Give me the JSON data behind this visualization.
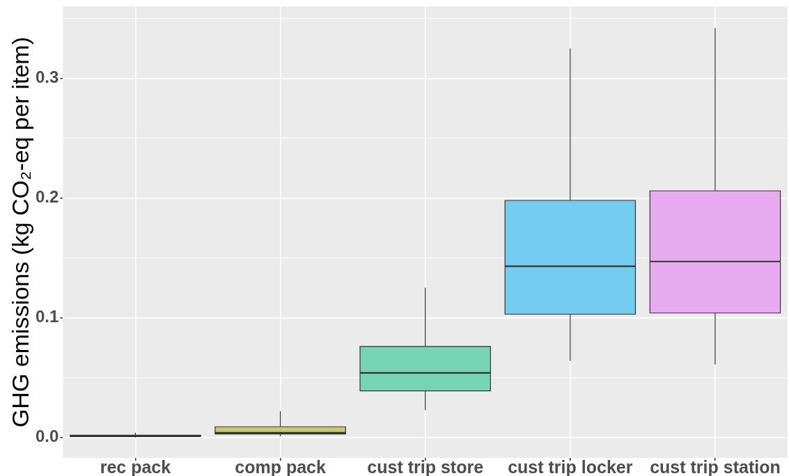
{
  "chart_data": {
    "type": "box",
    "categories": [
      "rec pack",
      "comp pack",
      "cust trip store",
      "cust trip locker",
      "cust trip station"
    ],
    "ylabel": "GHG emissions (kg CO₂-eq per item)",
    "colors": [
      "#333333",
      "#c8c875",
      "#75d5b4",
      "#74ccf0",
      "#e8aaf0"
    ],
    "boxes": [
      {
        "low": 0,
        "q1": 0.001,
        "median": 0.001,
        "q3": 0.002,
        "high": 0.004
      },
      {
        "low": 0.001,
        "q1": 0.003,
        "median": 0.004,
        "q3": 0.009,
        "high": 0.022
      },
      {
        "low": 0.023,
        "q1": 0.039,
        "median": 0.054,
        "q3": 0.076,
        "high": 0.125
      },
      {
        "low": 0.064,
        "q1": 0.103,
        "median": 0.143,
        "q3": 0.198,
        "high": 0.325
      },
      {
        "low": 0.061,
        "q1": 0.104,
        "median": 0.147,
        "q3": 0.206,
        "high": 0.342
      }
    ],
    "ylim": [
      -0.017,
      0.36
    ],
    "yticks": [
      {
        "value": 0,
        "label": "0.0"
      },
      0.1,
      0.2,
      0.3
    ],
    "grid": true
  }
}
